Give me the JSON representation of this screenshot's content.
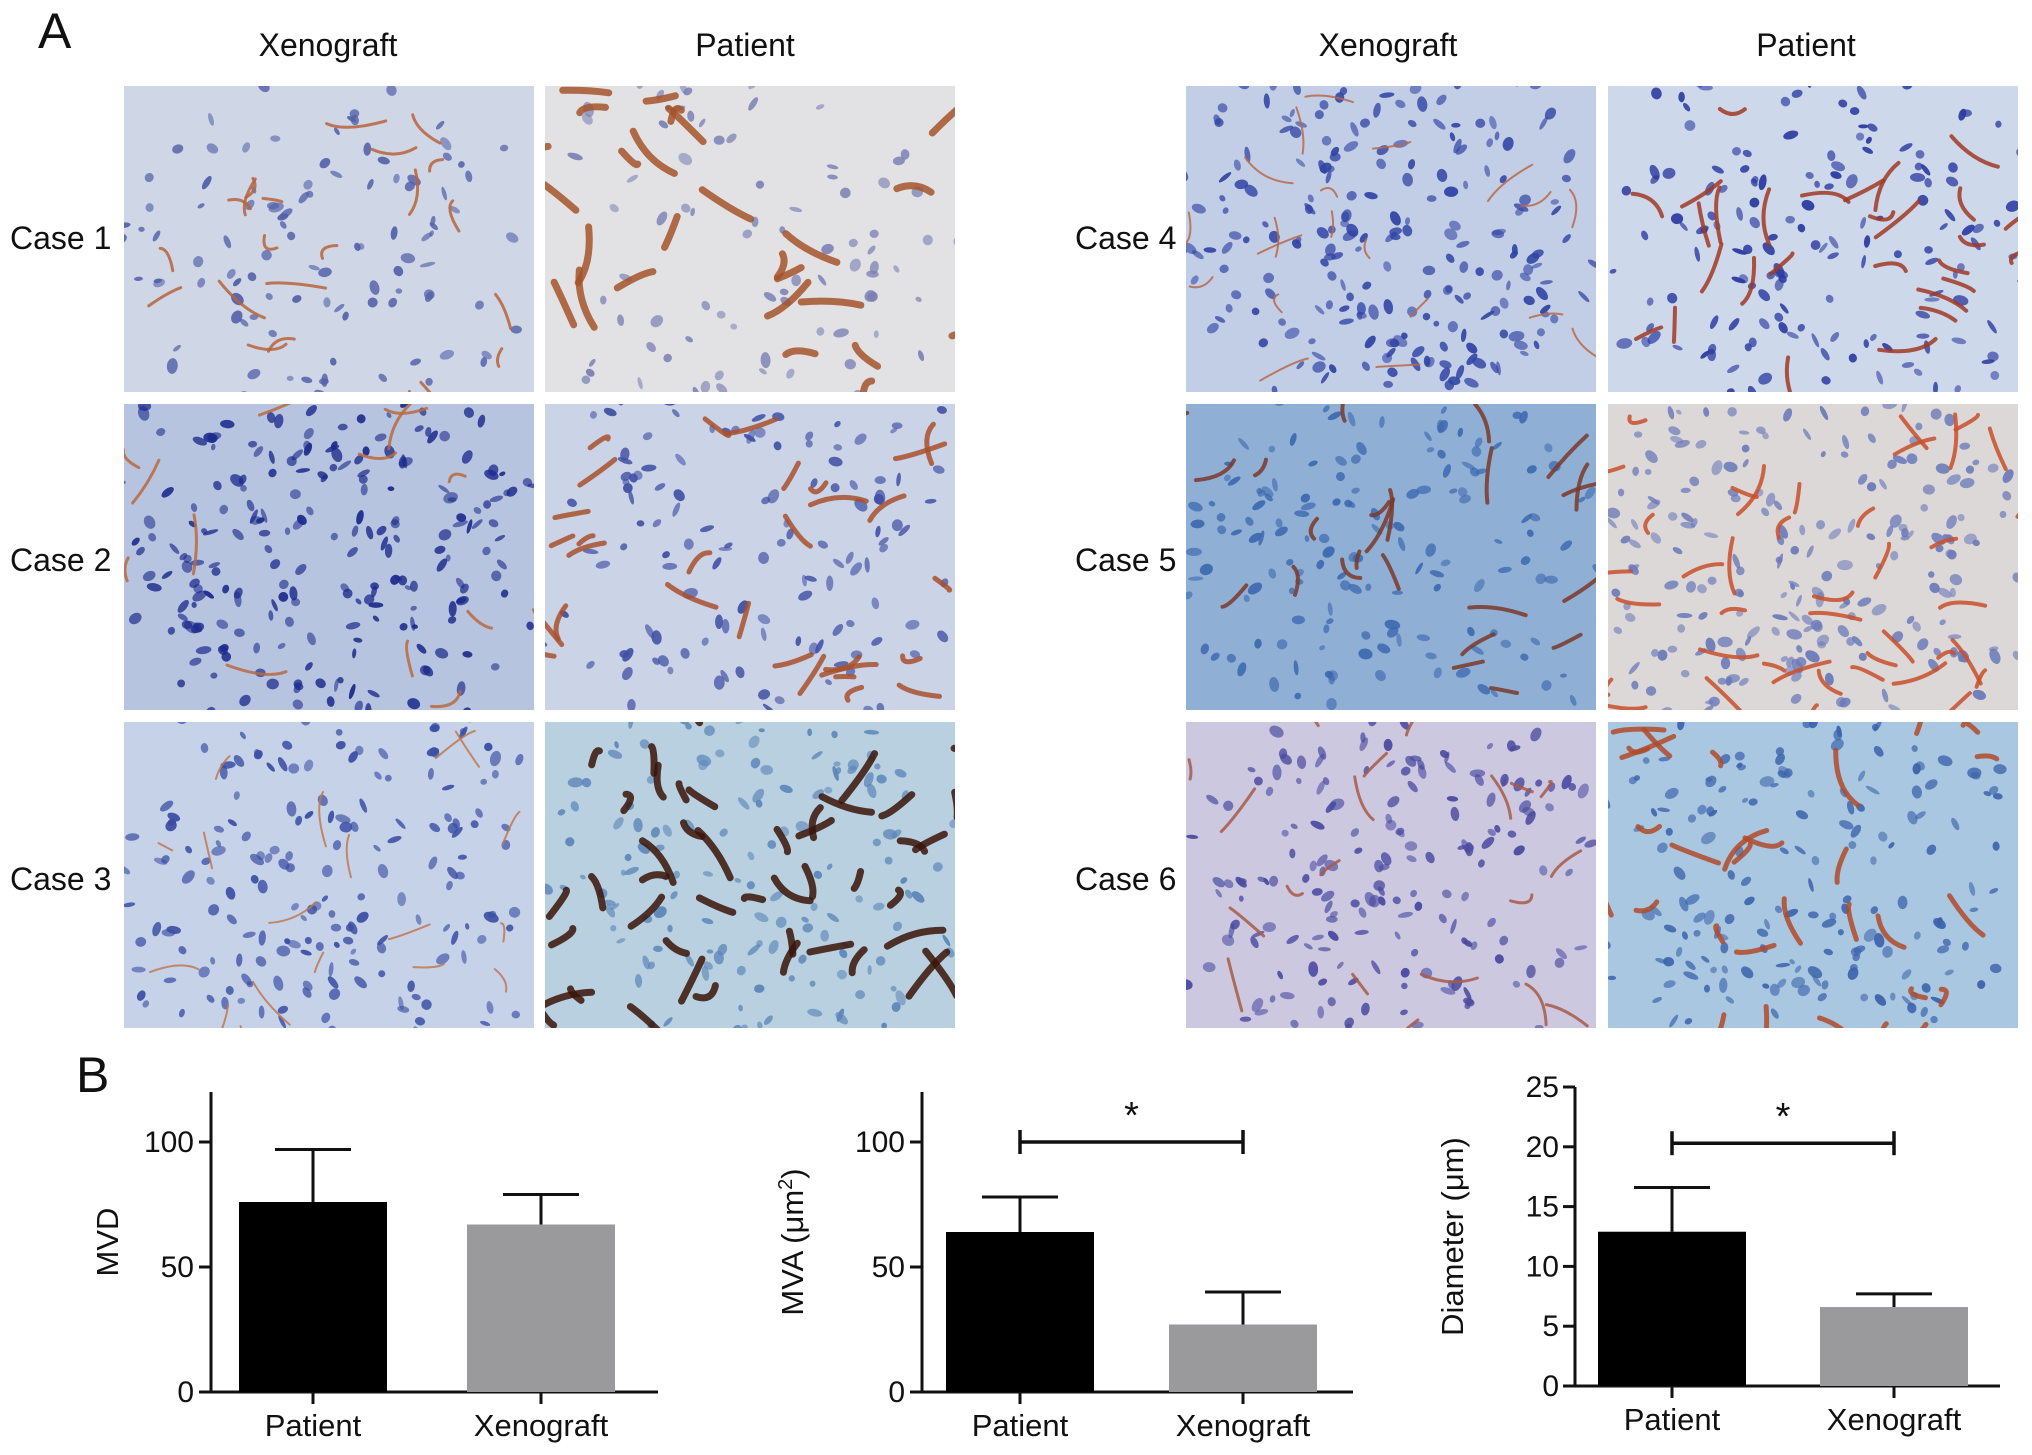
{
  "panel_a": {
    "letter": "A",
    "groups": [
      {
        "columns": [
          "Xenograft",
          "Patient"
        ],
        "rows": [
          {
            "label": "Case 1",
            "tiles": [
              {
                "bg": "#cfd6e6",
                "nuclei": "#5160a8",
                "vessel": "#b8643a",
                "nuc_count": 130,
                "vessel_count": 22,
                "vessel_width": 3
              },
              {
                "bg": "#e2e2e4",
                "nuclei": "#7a80b4",
                "vessel": "#a4542a",
                "nuc_count": 90,
                "vessel_count": 26,
                "vessel_width": 7
              }
            ]
          },
          {
            "label": "Case 2",
            "tiles": [
              {
                "bg": "#b7c4df",
                "nuclei": "#1c2a8c",
                "vessel": "#b86a40",
                "nuc_count": 260,
                "vessel_count": 14,
                "vessel_width": 3
              },
              {
                "bg": "#cbd3e7",
                "nuclei": "#4050a4",
                "vessel": "#a8502c",
                "nuc_count": 140,
                "vessel_count": 30,
                "vessel_width": 5
              }
            ]
          },
          {
            "label": "Case 3",
            "tiles": [
              {
                "bg": "#c6d2e8",
                "nuclei": "#3a4ea4",
                "vessel": "#c07850",
                "nuc_count": 200,
                "vessel_count": 18,
                "vessel_width": 2
              },
              {
                "bg": "#b8d0e0",
                "nuclei": "#5c86b8",
                "vessel": "#3a1508",
                "nuc_count": 160,
                "vessel_count": 45,
                "vessel_width": 7
              }
            ]
          }
        ]
      },
      {
        "columns": [
          "Xenograft",
          "Patient"
        ],
        "rows": [
          {
            "label": "Case 4",
            "tiles": [
              {
                "bg": "#c2cee6",
                "nuclei": "#3044a4",
                "vessel": "#b86848",
                "nuc_count": 260,
                "vessel_count": 20,
                "vessel_width": 2
              },
              {
                "bg": "#cdd8ea",
                "nuclei": "#2a3aa0",
                "vessel": "#a03a24",
                "nuc_count": 170,
                "vessel_count": 28,
                "vessel_width": 4
              }
            ]
          },
          {
            "label": "Case 5",
            "tiles": [
              {
                "bg": "#8fb0d4",
                "nuclei": "#3c68b0",
                "vessel": "#7a3a2a",
                "nuc_count": 190,
                "vessel_count": 24,
                "vessel_width": 4
              },
              {
                "bg": "#ddd8d8",
                "nuclei": "#6a7ab8",
                "vessel": "#c8502c",
                "nuc_count": 240,
                "vessel_count": 40,
                "vessel_width": 4
              }
            ]
          },
          {
            "label": "Case 6",
            "tiles": [
              {
                "bg": "#cbc8e0",
                "nuclei": "#4a4aa0",
                "vessel": "#a85a48",
                "nuc_count": 210,
                "vessel_count": 20,
                "vessel_width": 3
              },
              {
                "bg": "#a9c7e0",
                "nuclei": "#3c64ac",
                "vessel": "#b04a28",
                "nuc_count": 200,
                "vessel_count": 30,
                "vessel_width": 5
              }
            ]
          }
        ]
      }
    ]
  },
  "panel_b": {
    "letter": "B"
  },
  "chart_data": [
    {
      "type": "bar",
      "title": "",
      "categories": [
        "Patient",
        "Xenograft"
      ],
      "values": [
        76,
        67
      ],
      "error_bars": [
        21,
        12
      ],
      "colors": [
        "#000000",
        "#9a9a9c"
      ],
      "xlabel": "",
      "ylabel": "MVD",
      "ylim": [
        0,
        120
      ],
      "yticks": [
        0,
        50,
        100
      ],
      "grid": false,
      "significance": null
    },
    {
      "type": "bar",
      "title": "",
      "categories": [
        "Patient",
        "Xenograft"
      ],
      "values": [
        64,
        27
      ],
      "error_bars": [
        14,
        13
      ],
      "colors": [
        "#000000",
        "#9a9a9c"
      ],
      "xlabel": "",
      "ylabel": "MVA (μm",
      "ylabel_sup": "2",
      "ylabel_end": ")",
      "ylim": [
        0,
        120
      ],
      "yticks": [
        0,
        50,
        100
      ],
      "grid": false,
      "significance": {
        "text": "*",
        "y": 100
      }
    },
    {
      "type": "bar",
      "title": "",
      "categories": [
        "Patient",
        "Xenograft"
      ],
      "values": [
        12.9,
        6.6
      ],
      "error_bars": [
        3.7,
        1.1
      ],
      "colors": [
        "#000000",
        "#9a9a9c"
      ],
      "xlabel": "",
      "ylabel": "Diameter (μm)",
      "ylim": [
        0,
        25
      ],
      "yticks": [
        0,
        5,
        10,
        15,
        20,
        25
      ],
      "grid": false,
      "significance": {
        "text": "*",
        "y": 20.3
      }
    }
  ]
}
